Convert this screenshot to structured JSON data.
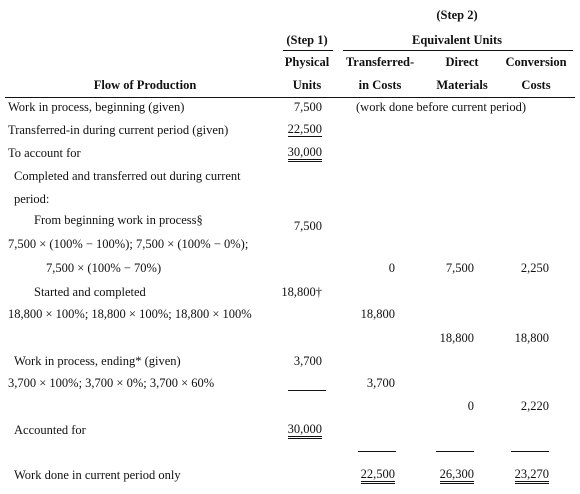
{
  "header": {
    "step2": "(Step 2)",
    "step1": "(Step 1)",
    "equivalent_units": "Equivalent Units",
    "flow": "Flow of Production",
    "physical": [
      "Physical",
      "Units"
    ],
    "transferred": [
      "Transferred-",
      "in Costs"
    ],
    "materials": [
      "Direct",
      "Materials"
    ],
    "conversion": [
      "Conversion",
      "Costs"
    ]
  },
  "rows": [
    {
      "label": "Work in process, beginning (given)",
      "units": "7,500",
      "note": "(work done before current period)"
    },
    {
      "label": "Transferred-in during current period (given)",
      "units": "22,500"
    },
    {
      "label": "To account for",
      "units": "30,000"
    },
    {
      "label": "Completed and transferred out during current"
    },
    {
      "label": "period:"
    },
    {
      "label": "From beginning work in process§",
      "units": "7,500"
    },
    {
      "label": "7,500 × (100% − 100%); 7,500 × (100% − 0%);"
    },
    {
      "label": "7,500 × (100% − 70%)",
      "transferred": "0",
      "materials": "7,500",
      "conversion": "2,250"
    },
    {
      "label": "Started and completed",
      "units": "18,800†"
    },
    {
      "label": "18,800 × 100%; 18,800 × 100%; 18,800 × 100%",
      "transferred": "18,800"
    },
    {
      "materials": "18,800",
      "conversion": "18,800"
    },
    {
      "label": "Work in process, ending* (given)",
      "units": "3,700"
    },
    {
      "label": "3,700 × 100%; 3,700 × 0%; 3,700 × 60%",
      "transferred": "3,700"
    },
    {
      "materials": "0",
      "conversion": "2,220"
    },
    {
      "label": "Accounted for",
      "units": "30,000"
    },
    {
      "label": "Work done in current period only",
      "transferred": "22,500",
      "materials": "26,300",
      "conversion": "23,270"
    }
  ]
}
